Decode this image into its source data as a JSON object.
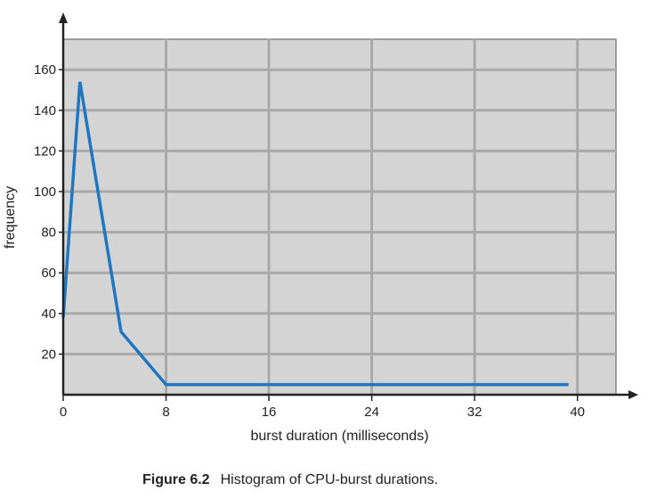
{
  "chart_data": {
    "type": "line",
    "title": "",
    "xlabel": "burst duration (milliseconds)",
    "ylabel": "frequency",
    "xlim": [
      0,
      43
    ],
    "ylim": [
      0,
      175
    ],
    "x_ticks": [
      0,
      8,
      16,
      24,
      32,
      40
    ],
    "y_ticks": [
      20,
      40,
      60,
      80,
      100,
      120,
      140,
      160
    ],
    "grid": true,
    "series": [
      {
        "x": [
          0,
          1.3,
          4.5,
          8,
          16,
          24,
          32,
          39.3
        ],
        "y": [
          38,
          154,
          31,
          5,
          5,
          5,
          5,
          5
        ]
      }
    ]
  },
  "caption": {
    "label": "Figure 6.2",
    "text": "Histogram of CPU-burst durations."
  },
  "colors": {
    "plot_background": "#d4d4d4",
    "gridline": "#a9a9a9",
    "line": "#1f77c2",
    "axis": "#222222"
  }
}
